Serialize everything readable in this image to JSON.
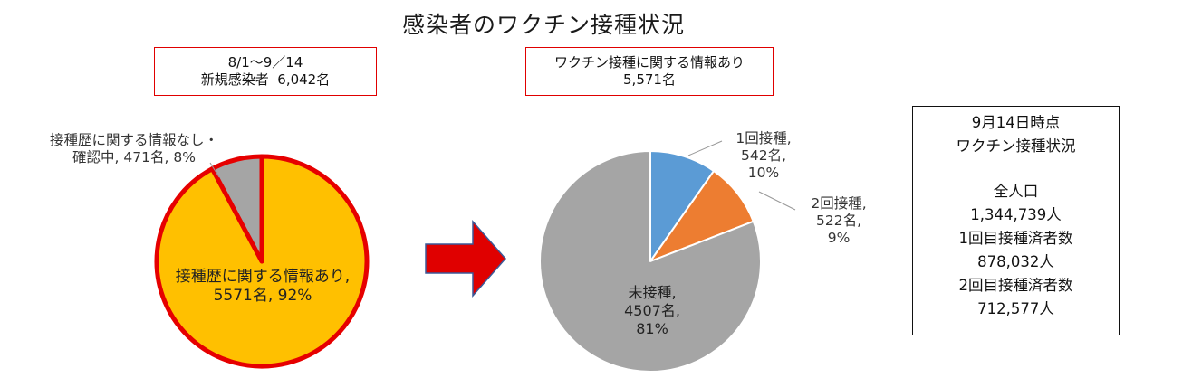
{
  "header": {
    "title": "感染者のワクチン接種状況"
  },
  "left_box": {
    "line1": "8/1～9／14",
    "line2": "新規感染者  6,042名"
  },
  "mid_box": {
    "line1": "ワクチン接種に関する情報あり",
    "line2": "5,571名"
  },
  "status_box": {
    "line1": "9月14日時点",
    "line2": "ワクチン接種状況",
    "line3": "全人口",
    "line4": "1,344,739人",
    "line5": "1回目接種済者数",
    "line6": "878,032人",
    "line7": "2回目接種済者数",
    "line8": "712,577人"
  },
  "colors": {
    "orange_slice": "#FFC000",
    "gray": "#A5A5A5",
    "blue": "#5B9BD5",
    "orange": "#ED7D31",
    "red_border": "#E60000",
    "arrow": "#E00000",
    "arrow_outline": "#3B5998"
  },
  "chart_data": [
    {
      "type": "pie",
      "categories": [
        "接種歴に関する情報あり",
        "接種歴に関する情報なし・確認中"
      ],
      "values": [
        5571,
        471
      ],
      "percent": [
        92,
        8
      ],
      "labels": {
        "a1": "接種歴に関する情報あり,",
        "a2": "5571名, 92%",
        "b1": "接種歴に関する情報なし・",
        "b2": "確認中, 471名, 8%"
      }
    },
    {
      "type": "pie",
      "categories": [
        "1回接種",
        "2回接種",
        "未接種"
      ],
      "values": [
        542,
        522,
        4507
      ],
      "percent": [
        10,
        9,
        81
      ],
      "labels": {
        "a1": "1回接種,",
        "a2": "542名,",
        "a3": "10%",
        "b1": "2回接種,",
        "b2": "522名,",
        "b3": "9%",
        "c1": "未接種,",
        "c2": "4507名,",
        "c3": "81%"
      }
    }
  ]
}
